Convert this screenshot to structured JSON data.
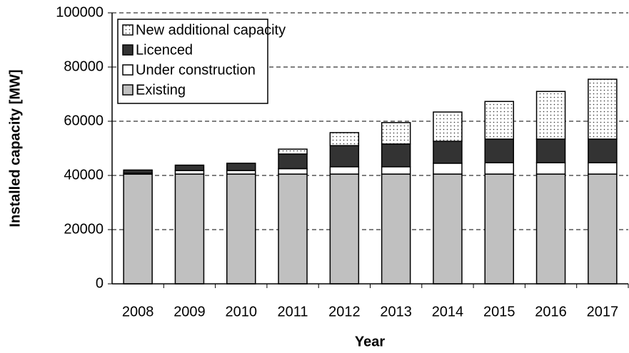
{
  "chart_data": {
    "type": "stacked_bar",
    "xlabel": "Year",
    "ylabel": "Installed capacity [MW]",
    "categories": [
      "2008",
      "2009",
      "2010",
      "2011",
      "2012",
      "2013",
      "2014",
      "2015",
      "2016",
      "2017"
    ],
    "series": [
      {
        "name": "Existing",
        "color": "#c0c0c0",
        "values": [
          40500,
          40500,
          40500,
          40500,
          40500,
          40500,
          40500,
          40500,
          40500,
          40500
        ]
      },
      {
        "name": "Under construction",
        "color": "#ffffff",
        "values": [
          300,
          1300,
          1300,
          2000,
          2700,
          2700,
          4000,
          4200,
          4200,
          4200
        ]
      },
      {
        "name": "Licenced",
        "color": "#333333",
        "values": [
          1200,
          2000,
          2700,
          5400,
          7800,
          8400,
          8100,
          8700,
          8700,
          8700
        ]
      },
      {
        "name": "New additional capacity",
        "color": "#ffffff",
        "pattern": "dotted",
        "values": [
          0,
          0,
          0,
          1800,
          4800,
          7900,
          10800,
          13900,
          17600,
          22100
        ]
      }
    ],
    "ylim": [
      0,
      100000
    ],
    "yticks": [
      0,
      20000,
      40000,
      60000,
      80000,
      100000
    ],
    "grid": true,
    "legend": "upper left"
  }
}
